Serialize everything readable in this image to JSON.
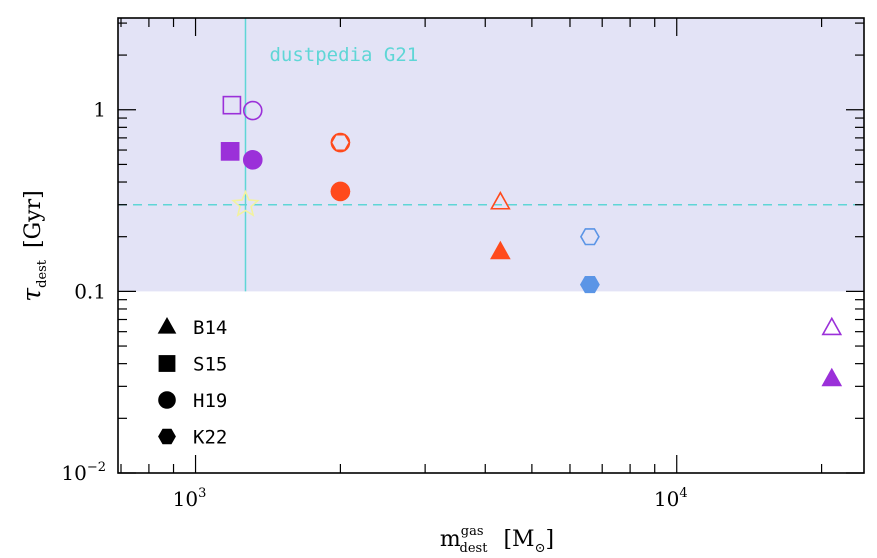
{
  "chart_data": {
    "type": "scatter",
    "xscale": "log",
    "yscale": "log",
    "xlim": [
      690,
      24500
    ],
    "ylim": [
      0.01,
      3.2
    ],
    "xticklabels": [
      {
        "value": 1000,
        "base": "10",
        "exp": "3"
      },
      {
        "value": 10000,
        "base": "10",
        "exp": "4"
      }
    ],
    "yticklabels": [
      {
        "value": 1,
        "text": "1"
      },
      {
        "value": 0.1,
        "text": "0.1"
      },
      {
        "value": 0.01,
        "base": "10",
        "exp": "−2"
      }
    ],
    "xlabel": {
      "main": "m",
      "sup": "gas",
      "sub": "dest",
      "unit_open": "[M",
      "unit_sub": "⊙",
      "unit_close": "]"
    },
    "ylabel": {
      "main": "τ",
      "sub": "dest",
      "unit": "[Gyr]"
    },
    "shaded_region": {
      "y_min": 0.1,
      "y_max": 3.2,
      "color": "#e3e3f6"
    },
    "reference": {
      "label": "dustpedia G21",
      "x": 1270,
      "y": 0.3,
      "y_top": 3.2,
      "y_bottom": 0.1,
      "color": "#5fd6d6",
      "marker": "star",
      "marker_color": "#f2f2a0"
    },
    "legend": {
      "position": "lower-left",
      "entries": [
        {
          "marker": "triangle",
          "label": "B14"
        },
        {
          "marker": "square",
          "label": "S15"
        },
        {
          "marker": "circle",
          "label": "H19"
        },
        {
          "marker": "hexagon",
          "label": "K22"
        }
      ]
    },
    "colors": {
      "purple": "#9b30d9",
      "orange": "#ff4a1c",
      "blue": "#5b95e6"
    },
    "points": [
      {
        "x": 1190,
        "y": 1.06,
        "marker": "square",
        "fill": "open",
        "color": "#9b30d9"
      },
      {
        "x": 1315,
        "y": 0.99,
        "marker": "circle",
        "fill": "open",
        "color": "#9b30d9"
      },
      {
        "x": 1180,
        "y": 0.59,
        "marker": "square",
        "fill": "filled",
        "color": "#9b30d9"
      },
      {
        "x": 1315,
        "y": 0.53,
        "marker": "circle",
        "fill": "filled",
        "color": "#9b30d9"
      },
      {
        "x": 2000,
        "y": 0.66,
        "marker": "circle",
        "fill": "open",
        "color": "#ff4a1c"
      },
      {
        "x": 2000,
        "y": 0.66,
        "marker": "hexagon",
        "fill": "open",
        "color": "#ff4a1c"
      },
      {
        "x": 2000,
        "y": 0.355,
        "marker": "circle",
        "fill": "filled",
        "color": "#ff4a1c"
      },
      {
        "x": 2000,
        "y": 0.355,
        "marker": "hexagon",
        "fill": "filled",
        "color": "#ff4a1c"
      },
      {
        "x": 4300,
        "y": 0.31,
        "marker": "triangle",
        "fill": "open",
        "color": "#ff4a1c"
      },
      {
        "x": 4300,
        "y": 0.165,
        "marker": "triangle",
        "fill": "filled",
        "color": "#ff4a1c"
      },
      {
        "x": 6600,
        "y": 0.2,
        "marker": "hexagon",
        "fill": "open",
        "color": "#5b95e6"
      },
      {
        "x": 6600,
        "y": 0.109,
        "marker": "hexagon",
        "fill": "filled",
        "color": "#5b95e6"
      },
      {
        "x": 21000,
        "y": 0.063,
        "marker": "triangle",
        "fill": "open",
        "color": "#9b30d9"
      },
      {
        "x": 21000,
        "y": 0.033,
        "marker": "triangle",
        "fill": "filled",
        "color": "#9b30d9"
      }
    ]
  }
}
